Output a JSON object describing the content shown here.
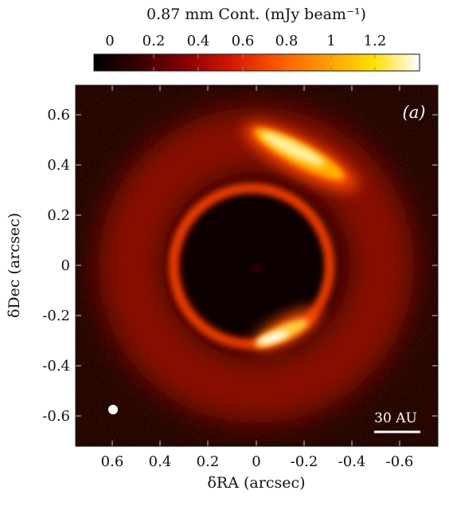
{
  "chart_data": {
    "type": "heatmap",
    "panel_label": "(a)",
    "colorbar": {
      "label": "0.87 mm Cont. (mJy beam⁻¹)",
      "range": [
        0,
        1.4
      ],
      "ticks": [
        0,
        0.2,
        0.4,
        0.6,
        0.8,
        1,
        1.2
      ],
      "tick_labels": [
        "0",
        "0.2",
        "0.4",
        "0.6",
        "0.8",
        "1",
        "1.2"
      ],
      "colormap": [
        "#000000",
        "#3a0000",
        "#8a0000",
        "#d81a00",
        "#ff5a00",
        "#ff9d00",
        "#ffe000",
        "#ffffff"
      ]
    },
    "x_axis": {
      "label": "δRA (arcsec)",
      "ticks": [
        0.6,
        0.4,
        0.2,
        0,
        -0.2,
        -0.4,
        -0.6
      ],
      "tick_labels": [
        "0.6",
        "0.4",
        "0.2",
        "0",
        "-0.2",
        "-0.4",
        "-0.6"
      ],
      "range": [
        0.72,
        -0.72
      ],
      "inverted": true
    },
    "y_axis": {
      "label": "δDec (arcsec)",
      "ticks": [
        0.6,
        0.4,
        0.2,
        0,
        -0.2,
        -0.4,
        -0.6
      ],
      "tick_labels": [
        "0.6",
        "0.4",
        "0.2",
        "0",
        "-0.2",
        "-0.4",
        "-0.6"
      ],
      "range": [
        -0.72,
        0.72
      ]
    },
    "features": [
      {
        "kind": "inner-ring",
        "center": [
          0,
          0
        ],
        "radius_arcsec": 0.3,
        "peak_mJy": 0.85
      },
      {
        "kind": "outer-ring",
        "center": [
          0,
          0
        ],
        "radius_arcsec": 0.5,
        "peak_mJy": 0.35
      },
      {
        "kind": "crescent",
        "center_deg": 25,
        "radius_arcsec": 0.5,
        "peak_mJy": 1.3
      },
      {
        "kind": "inner-ring-arc",
        "center_deg": 280,
        "radius_arcsec": 0.3,
        "peak_mJy": 1.3
      }
    ],
    "beam": {
      "x_arcsec": 0.57,
      "y_arcsec": -0.58
    },
    "scale_bar": {
      "label": "30 AU",
      "length_arcsec": 0.2
    }
  }
}
